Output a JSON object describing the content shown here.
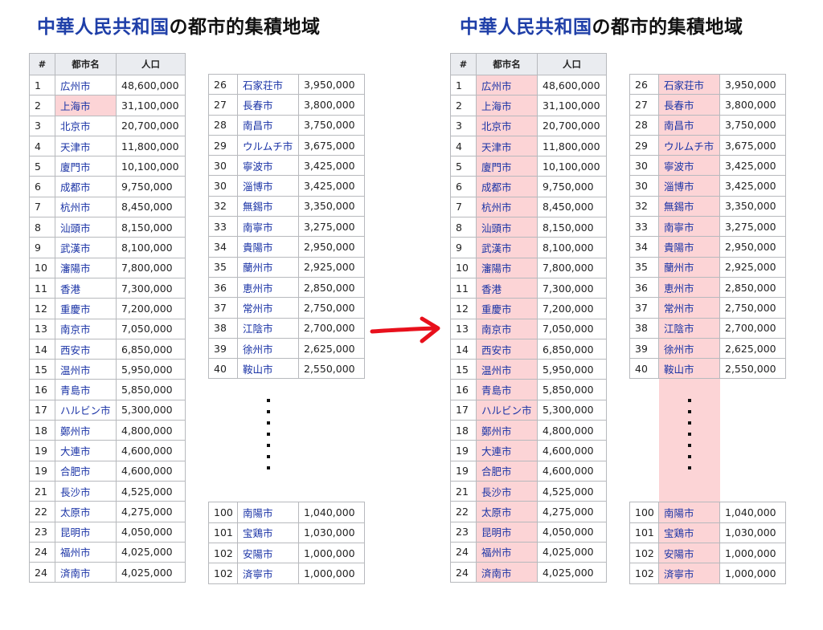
{
  "title": {
    "highlight": "中華人民共和国",
    "rest": "の都市的集積地域"
  },
  "headers": {
    "rank": "#",
    "city": "都市名",
    "population": "人口"
  },
  "table1": [
    {
      "rank": "1",
      "city": "広州市",
      "pop": "48,600,000"
    },
    {
      "rank": "2",
      "city": "上海市",
      "pop": "31,100,000"
    },
    {
      "rank": "3",
      "city": "北京市",
      "pop": "20,700,000"
    },
    {
      "rank": "4",
      "city": "天津市",
      "pop": "11,800,000"
    },
    {
      "rank": "5",
      "city": "廈門市",
      "pop": "10,100,000"
    },
    {
      "rank": "6",
      "city": "成都市",
      "pop": "9,750,000"
    },
    {
      "rank": "7",
      "city": "杭州市",
      "pop": "8,450,000"
    },
    {
      "rank": "8",
      "city": "汕頭市",
      "pop": "8,150,000"
    },
    {
      "rank": "9",
      "city": "武漢市",
      "pop": "8,100,000"
    },
    {
      "rank": "10",
      "city": "瀋陽市",
      "pop": "7,800,000"
    },
    {
      "rank": "11",
      "city": "香港",
      "pop": "7,300,000"
    },
    {
      "rank": "12",
      "city": "重慶市",
      "pop": "7,200,000"
    },
    {
      "rank": "13",
      "city": "南京市",
      "pop": "7,050,000"
    },
    {
      "rank": "14",
      "city": "西安市",
      "pop": "6,850,000"
    },
    {
      "rank": "15",
      "city": "温州市",
      "pop": "5,950,000"
    },
    {
      "rank": "16",
      "city": "青島市",
      "pop": "5,850,000"
    },
    {
      "rank": "17",
      "city": "ハルビン市",
      "pop": "5,300,000"
    },
    {
      "rank": "18",
      "city": "鄭州市",
      "pop": "4,800,000"
    },
    {
      "rank": "19",
      "city": "大連市",
      "pop": "4,600,000"
    },
    {
      "rank": "19",
      "city": "合肥市",
      "pop": "4,600,000"
    },
    {
      "rank": "21",
      "city": "長沙市",
      "pop": "4,525,000"
    },
    {
      "rank": "22",
      "city": "太原市",
      "pop": "4,275,000"
    },
    {
      "rank": "23",
      "city": "昆明市",
      "pop": "4,050,000"
    },
    {
      "rank": "24",
      "city": "福州市",
      "pop": "4,025,000"
    },
    {
      "rank": "24",
      "city": "済南市",
      "pop": "4,025,000"
    }
  ],
  "table2_top": [
    {
      "rank": "26",
      "city": "石家荘市",
      "pop": "3,950,000"
    },
    {
      "rank": "27",
      "city": "長春市",
      "pop": "3,800,000"
    },
    {
      "rank": "28",
      "city": "南昌市",
      "pop": "3,750,000"
    },
    {
      "rank": "29",
      "city": "ウルムチ市",
      "pop": "3,675,000"
    },
    {
      "rank": "30",
      "city": "寧波市",
      "pop": "3,425,000"
    },
    {
      "rank": "30",
      "city": "淄博市",
      "pop": "3,425,000"
    },
    {
      "rank": "32",
      "city": "無錫市",
      "pop": "3,350,000"
    },
    {
      "rank": "33",
      "city": "南寧市",
      "pop": "3,275,000"
    },
    {
      "rank": "34",
      "city": "貴陽市",
      "pop": "2,950,000"
    },
    {
      "rank": "35",
      "city": "蘭州市",
      "pop": "2,925,000"
    },
    {
      "rank": "36",
      "city": "恵州市",
      "pop": "2,850,000"
    },
    {
      "rank": "37",
      "city": "常州市",
      "pop": "2,750,000"
    },
    {
      "rank": "38",
      "city": "江陰市",
      "pop": "2,700,000"
    },
    {
      "rank": "39",
      "city": "徐州市",
      "pop": "2,625,000"
    },
    {
      "rank": "40",
      "city": "鞍山市",
      "pop": "2,550,000"
    }
  ],
  "table2_bottom": [
    {
      "rank": "100",
      "city": "南陽市",
      "pop": "1,040,000"
    },
    {
      "rank": "101",
      "city": "宝鶏市",
      "pop": "1,030,000"
    },
    {
      "rank": "102",
      "city": "安陽市",
      "pop": "1,000,000"
    },
    {
      "rank": "102",
      "city": "済寧市",
      "pop": "1,000,000"
    }
  ],
  "colors": {
    "title_highlight": "#1f3fa8",
    "link": "#1a33a6",
    "cell_highlight": "#fcd4d6",
    "arrow": "#e8101c",
    "header_bg": "#eaecf0",
    "border": "#b7b9bd"
  },
  "arrow_icon": "right-arrow-icon"
}
